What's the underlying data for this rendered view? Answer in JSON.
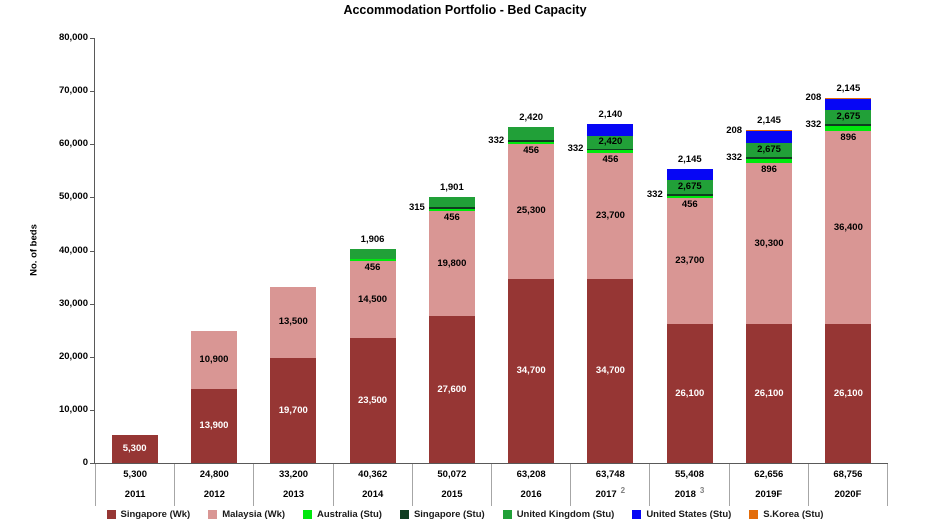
{
  "chart_data": {
    "type": "bar",
    "stacked": true,
    "title": "Accommodation Portfolio - Bed Capacity",
    "ylabel": "No. of beds",
    "ylim": [
      0,
      80000
    ],
    "ytick_step": 10000,
    "grid": false,
    "legend_position": "bottom",
    "categories": [
      "2011",
      "2012",
      "2013",
      "2014",
      "2015",
      "2016",
      "2017",
      "2018",
      "2019F",
      "2020F"
    ],
    "category_totals": [
      5300,
      24800,
      33200,
      40362,
      50072,
      63208,
      63748,
      55408,
      62656,
      68756
    ],
    "category_footnotes": [
      "",
      "",
      "",
      "",
      "",
      "",
      "2",
      "3",
      "",
      ""
    ],
    "series": [
      {
        "name": "Singapore (Wk)",
        "color": "#963634",
        "label_placement": "inside",
        "label_color": "#FFFFFF",
        "values": [
          5300,
          13900,
          19700,
          23500,
          27600,
          34700,
          34700,
          26100,
          26100,
          26100
        ]
      },
      {
        "name": "Malaysia (Wk)",
        "color": "#D99694",
        "label_placement": "inside",
        "label_color": "#000000",
        "values": [
          0,
          10900,
          13500,
          14500,
          19800,
          25300,
          23700,
          23700,
          30300,
          36400
        ]
      },
      {
        "name": "Australia (Stu)",
        "color": "#00E80D",
        "label_placement": "below",
        "label_color": "#000000",
        "values": [
          0,
          0,
          0,
          456,
          456,
          456,
          456,
          456,
          896,
          896
        ]
      },
      {
        "name": "Singapore (Stu)",
        "color": "#0E3D20",
        "label_placement": "left",
        "label_color": "#000000",
        "values": [
          0,
          0,
          0,
          0,
          315,
          332,
          332,
          332,
          332,
          332
        ]
      },
      {
        "name": "United Kingdom (Stu)",
        "color": "#21A038",
        "label_placement": "top-or-inside",
        "label_color": "#000000",
        "values": [
          0,
          0,
          0,
          1906,
          1901,
          2420,
          2420,
          2675,
          2675,
          2675
        ]
      },
      {
        "name": "United States (Stu)",
        "color": "#0606F5",
        "label_placement": "above",
        "label_color": "#000000",
        "values": [
          0,
          0,
          0,
          0,
          0,
          0,
          2140,
          2145,
          2145,
          2145
        ]
      },
      {
        "name": "S.Korea (Stu)",
        "color": "#E36C0A",
        "label_placement": "left",
        "label_color": "#000000",
        "values": [
          0,
          0,
          0,
          0,
          0,
          0,
          0,
          0,
          208,
          208
        ]
      }
    ]
  }
}
